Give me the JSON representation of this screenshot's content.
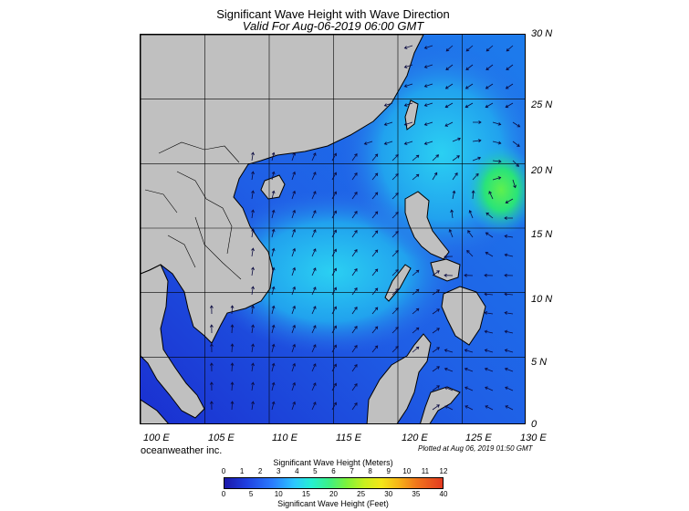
{
  "title": "Significant Wave Height with Wave Direction",
  "subtitle": "Valid For Aug-06-2019 06:00 GMT",
  "latitude_labels": [
    "30 N",
    "25 N",
    "20 N",
    "15 N",
    "10 N",
    "5 N",
    "0"
  ],
  "longitude_labels": [
    "100 E",
    "105 E",
    "110 E",
    "115 E",
    "120 E",
    "125 E",
    "130 E"
  ],
  "company": "oceanweather inc.",
  "plotted": "Plotted at Aug 06, 2019 01:50 GMT",
  "legend": {
    "meters_caption": "Significant Wave Height (Meters)",
    "feet_caption": "Significant Wave Height (Feet)",
    "meter_ticks": [
      "0",
      "1",
      "2",
      "3",
      "4",
      "5",
      "6",
      "7",
      "8",
      "9",
      "10",
      "11",
      "12"
    ],
    "feet_ticks": [
      "0",
      "5",
      "10",
      "15",
      "20",
      "25",
      "30",
      "35",
      "40"
    ]
  },
  "colors": {
    "land": "#c0c0c0",
    "sea_low": "#2a2fd6",
    "sea_mid": "#22b8f0",
    "sea_high": "#45ee6a"
  }
}
